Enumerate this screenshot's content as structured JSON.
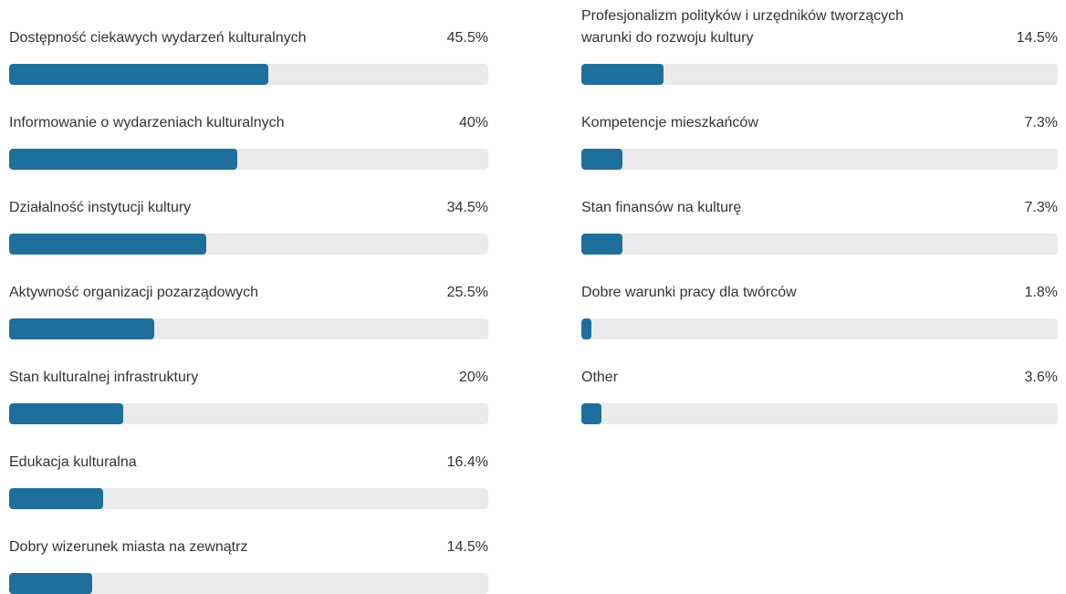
{
  "chart_data": {
    "type": "bar",
    "categories": [
      "Dostępność ciekawych wydarzeń kulturalnych",
      "Informowanie o wydarzeniach kulturalnych",
      "Działalność instytucji kultury",
      "Aktywność organizacji pozarządowych",
      "Stan kulturalnej infrastruktury",
      "Edukacja kulturalna",
      "Dobry wizerunek miasta na zewnątrz",
      "Profesjonalizm polityków i urzędników tworzących warunki do rozwoju kultury",
      "Kompetencje mieszkańców",
      "Stan finansów na kulturę",
      "Dobre warunki pracy dla twórców",
      "Other"
    ],
    "values": [
      45.5,
      40,
      34.5,
      25.5,
      20,
      16.4,
      14.5,
      14.5,
      7.3,
      7.3,
      1.8,
      3.6
    ],
    "value_labels": [
      "45.5%",
      "40%",
      "34.5%",
      "25.5%",
      "20%",
      "16.4%",
      "14.5%",
      "14.5%",
      "7.3%",
      "7.3%",
      "1.8%",
      "3.6%"
    ],
    "color": "#1e6f9c",
    "xlim": [
      0,
      84
    ]
  }
}
